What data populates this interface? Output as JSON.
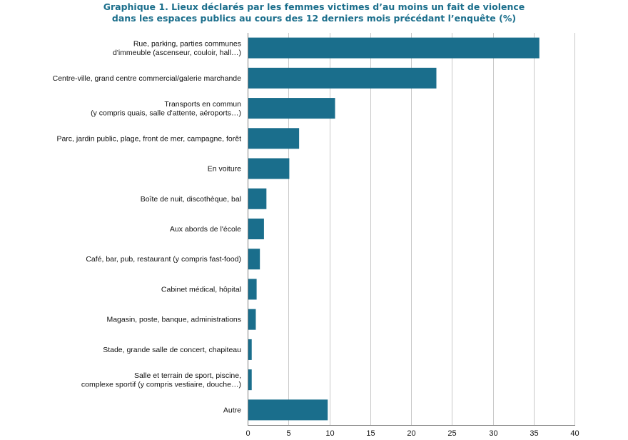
{
  "chart_data": {
    "type": "bar",
    "orientation": "horizontal",
    "title_lines": [
      "Graphique 1. Lieux déclarés par les femmes victimes d’au moins un fait de violence",
      "dans les espaces publics au cours des 12 derniers mois précédant l’enquête (%)"
    ],
    "xlabel": "",
    "ylabel": "",
    "xlim": [
      0,
      40
    ],
    "x_ticks": [
      0,
      5,
      10,
      15,
      20,
      25,
      30,
      35,
      40
    ],
    "grid": "vertical",
    "legend": "none",
    "bar_color": "#1a6e8c",
    "categories": [
      [
        "Rue, parking, parties communes",
        "d'immeuble (ascenseur, couloir, hall…)"
      ],
      [
        "Centre-ville, grand centre commercial/galerie marchande"
      ],
      [
        "Transports en commun",
        "(y compris quais, salle d'attente, aéroports…)"
      ],
      [
        "Parc, jardin public, plage, front de mer, campagne, forêt"
      ],
      [
        "En voiture"
      ],
      [
        "Boîte de nuit, discothèque, bal"
      ],
      [
        "Aux abords de l'école"
      ],
      [
        "Café, bar, pub, restaurant (y compris fast-food)"
      ],
      [
        "Cabinet médical, hôpital"
      ],
      [
        "Magasin, poste, banque, administrations"
      ],
      [
        "Stade, grande salle de concert, chapiteau"
      ],
      [
        "Salle et terrain de sport, piscine,",
        "complexe sportif (y compris vestiaire, douche…)"
      ],
      [
        "Autre"
      ]
    ],
    "values": [
      35.7,
      23.1,
      10.7,
      6.3,
      5.1,
      2.3,
      2.0,
      1.5,
      1.1,
      1.0,
      0.5,
      0.5,
      9.8
    ]
  }
}
